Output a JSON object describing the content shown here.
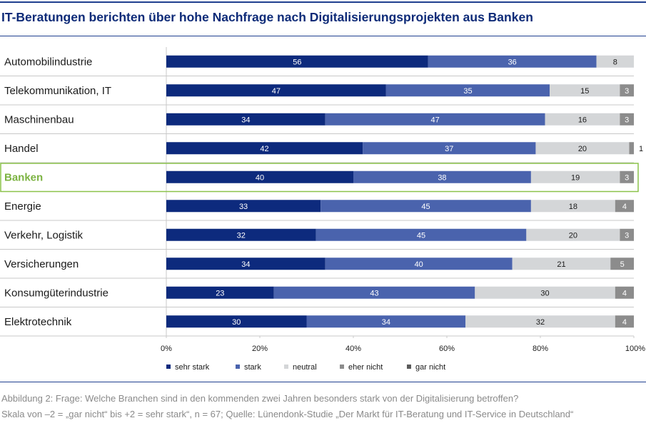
{
  "title": "IT-Beratungen berichten über hohe Nachfrage nach Digitalisierungsprojekten aus Banken",
  "caption_line1": "Abbildung 2: Frage: Welche Branchen sind in den kommenden zwei Jahren besonders stark von der Digitalisierung betroffen?",
  "caption_line2": "Skala von –2 = „gar nicht“ bis +2 = sehr stark“, n = 67; Quelle: Lünendonk-Studie „Der Markt für IT-Beratung und IT-Service in Deutschland“",
  "colors": {
    "sehr_stark": "#0d2a7d",
    "stark": "#4a63ad",
    "neutral": "#d4d6d8",
    "eher_nicht": "#8c8c8c",
    "gar_nicht": "#5a5a5a",
    "highlight": "#8bc34a"
  },
  "chart_data": {
    "type": "bar",
    "orientation": "horizontal",
    "stacked": true,
    "categories": [
      "Automobilindustrie",
      "Telekommunikation, IT",
      "Maschinenbau",
      "Handel",
      "Banken",
      "Energie",
      "Verkehr, Logistik",
      "Versicherungen",
      "Konsumgüterindustrie",
      "Elektrotechnik"
    ],
    "highlighted_category": "Banken",
    "series": [
      {
        "name": "sehr stark",
        "values": [
          56,
          47,
          34,
          42,
          40,
          33,
          32,
          34,
          23,
          30
        ]
      },
      {
        "name": "stark",
        "values": [
          36,
          35,
          47,
          37,
          38,
          45,
          45,
          40,
          43,
          34
        ]
      },
      {
        "name": "neutral",
        "values": [
          8,
          15,
          16,
          20,
          19,
          18,
          20,
          21,
          30,
          32
        ]
      },
      {
        "name": "eher nicht",
        "values": [
          0,
          3,
          3,
          1,
          3,
          4,
          3,
          5,
          4,
          4
        ]
      },
      {
        "name": "gar nicht",
        "values": [
          0,
          0,
          0,
          0,
          0,
          0,
          0,
          0,
          0,
          0
        ]
      }
    ],
    "xlim": [
      0,
      100
    ],
    "x_ticks": [
      "0%",
      "20%",
      "40%",
      "60%",
      "80%",
      "100%"
    ],
    "legend_position": "bottom",
    "xlabel": "",
    "ylabel": ""
  }
}
